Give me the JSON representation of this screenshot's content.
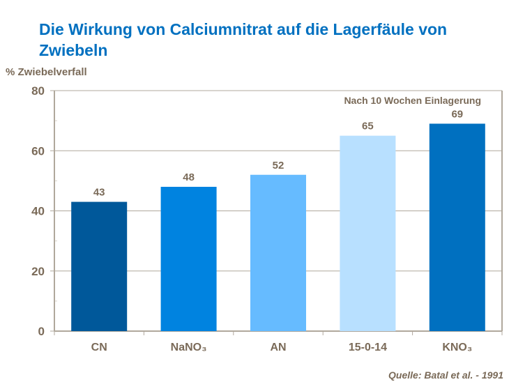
{
  "chart_data": {
    "type": "bar",
    "title": "Die Wirkung von Calciumnitrat auf die Lagerfäule von Zwiebeln",
    "ylabel": "% Zwiebelverfall",
    "xlabel": "",
    "annotation": "Nach 10 Wochen Einlagerung",
    "source": "Quelle: Batal et al. - 1991",
    "categories": [
      "CN",
      "NaNO₃",
      "AN",
      "15-0-14",
      "KNO₃"
    ],
    "values": [
      43,
      48,
      52,
      65,
      69
    ],
    "colors": [
      "#00589A",
      "#0083E0",
      "#66BBFF",
      "#B8E0FF",
      "#0070C0"
    ],
    "ylim": [
      0,
      80
    ],
    "yticks": [
      0,
      20,
      40,
      60,
      80
    ],
    "grid": true,
    "legend": "none"
  }
}
